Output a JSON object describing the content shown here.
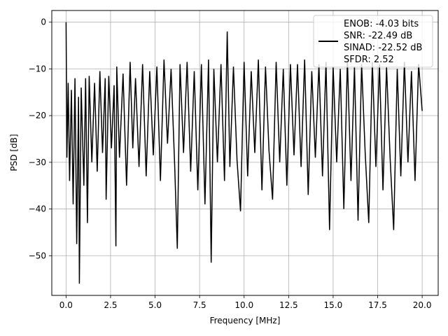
{
  "chart_data": {
    "type": "line",
    "title": "",
    "xlabel": "Frequency [MHz]",
    "ylabel": "PSD [dB]",
    "xlim": [
      -0.8,
      20.9
    ],
    "ylim": [
      -58.5,
      2.5
    ],
    "xticks": [
      0.0,
      2.5,
      5.0,
      7.5,
      10.0,
      12.5,
      15.0,
      17.5,
      20.0
    ],
    "xtick_labels": [
      "0.0",
      "2.5",
      "5.0",
      "7.5",
      "10.0",
      "12.5",
      "15.0",
      "17.5",
      "20.0"
    ],
    "yticks": [
      0,
      -10,
      -20,
      -30,
      -40,
      -50
    ],
    "ytick_labels": [
      "0",
      "−10",
      "−20",
      "−30",
      "−40",
      "−50"
    ],
    "grid": true,
    "legend_position": "top-right",
    "legend_entries": [
      "ENOB: -4.03 bits",
      "SNR: -22.49 dB",
      "SINAD: -22.52 dB",
      "SFDR: 2.52"
    ],
    "series": [
      {
        "color": "#000000",
        "x": [
          0.0,
          0.05,
          0.12,
          0.2,
          0.3,
          0.4,
          0.5,
          0.6,
          0.7,
          0.75,
          0.85,
          1.0,
          1.1,
          1.2,
          1.3,
          1.45,
          1.6,
          1.75,
          1.9,
          2.05,
          2.2,
          2.25,
          2.4,
          2.55,
          2.7,
          2.8,
          2.85,
          3.0,
          3.2,
          3.4,
          3.6,
          3.75,
          3.9,
          4.1,
          4.3,
          4.5,
          4.7,
          4.9,
          5.1,
          5.3,
          5.5,
          5.7,
          5.9,
          6.1,
          6.25,
          6.4,
          6.6,
          6.8,
          7.0,
          7.2,
          7.4,
          7.6,
          7.8,
          8.0,
          8.15,
          8.3,
          8.5,
          8.7,
          8.9,
          9.05,
          9.2,
          9.4,
          9.6,
          9.8,
          10.0,
          10.2,
          10.4,
          10.6,
          10.8,
          11.0,
          11.2,
          11.4,
          11.6,
          11.8,
          12.0,
          12.2,
          12.4,
          12.6,
          12.8,
          13.0,
          13.2,
          13.4,
          13.6,
          13.8,
          14.0,
          14.2,
          14.4,
          14.6,
          14.8,
          15.0,
          15.2,
          15.4,
          15.6,
          15.8,
          16.0,
          16.2,
          16.4,
          16.6,
          16.8,
          17.0,
          17.2,
          17.4,
          17.6,
          17.8,
          18.0,
          18.2,
          18.4,
          18.6,
          18.8,
          19.0,
          19.2,
          19.4,
          19.6,
          19.8,
          20.0
        ],
        "y": [
          0.0,
          -29.0,
          -13.0,
          -34.0,
          -14.5,
          -39.0,
          -12.0,
          -47.5,
          -16.0,
          -56.0,
          -14.0,
          -35.0,
          -12.0,
          -43.0,
          -11.5,
          -30.0,
          -13.0,
          -32.0,
          -10.5,
          -28.0,
          -12.0,
          -38.0,
          -11.5,
          -27.0,
          -13.5,
          -48.0,
          -9.5,
          -29.0,
          -11.0,
          -35.0,
          -8.5,
          -27.0,
          -12.0,
          -31.0,
          -9.0,
          -33.0,
          -10.5,
          -28.5,
          -9.5,
          -34.0,
          -8.0,
          -26.0,
          -10.0,
          -30.5,
          -48.5,
          -9.0,
          -28.0,
          -8.5,
          -32.0,
          -10.5,
          -36.0,
          -9.0,
          -39.0,
          -8.0,
          -51.5,
          -10.0,
          -30.0,
          -9.0,
          -34.0,
          -2.0,
          -31.0,
          -9.5,
          -29.5,
          -40.5,
          -8.5,
          -33.0,
          -10.5,
          -28.0,
          -8.0,
          -36.0,
          -9.5,
          -27.5,
          -38.0,
          -8.5,
          -30.0,
          -10.0,
          -35.0,
          -9.0,
          -28.5,
          -9.0,
          -31.0,
          -8.0,
          -37.0,
          -10.5,
          -29.0,
          -9.0,
          -33.0,
          -8.5,
          -44.5,
          -9.5,
          -30.0,
          -10.0,
          -40.0,
          -8.0,
          -34.0,
          -9.5,
          -42.5,
          -9.0,
          -28.0,
          -43.0,
          -8.5,
          -31.0,
          -9.0,
          -36.0,
          -9.5,
          -29.0,
          -44.5,
          -10.0,
          -33.0,
          -8.5,
          -30.0,
          -10.5,
          -34.0,
          -9.0,
          -19.0
        ]
      }
    ]
  }
}
